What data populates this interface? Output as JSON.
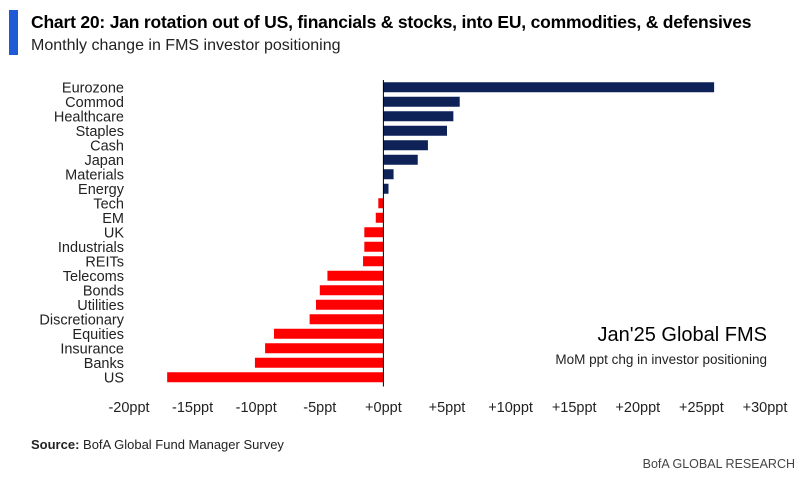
{
  "header": {
    "title": "Chart 20: Jan rotation out of US, financials & stocks, into EU, commodities, & defensives",
    "subtitle": "Monthly change in FMS investor positioning"
  },
  "annotation": {
    "title": "Jan'25 Global FMS",
    "subtitle": "MoM ppt chg in investor positioning"
  },
  "footer": {
    "source_label": "Source:",
    "source_text": "BofA Global Fund Manager Survey",
    "brand": "BofA GLOBAL RESEARCH"
  },
  "colors": {
    "positive": "#0f2258",
    "negative": "#ff0000",
    "accent": "#1f5bd6"
  },
  "chart_data": {
    "type": "bar",
    "orientation": "horizontal",
    "title": "Chart 20: Jan rotation out of US, financials & stocks, into EU, commodities, & defensives",
    "subtitle": "Monthly change in FMS investor positioning",
    "categories": [
      "Eurozone",
      "Commod",
      "Healthcare",
      "Staples",
      "Cash",
      "Japan",
      "Materials",
      "Energy",
      "Tech",
      "EM",
      "UK",
      "Industrials",
      "REITs",
      "Telecoms",
      "Bonds",
      "Utilities",
      "Discretionary",
      "Equities",
      "Insurance",
      "Banks",
      "US"
    ],
    "values": [
      26,
      6,
      5.5,
      5,
      3.5,
      2.7,
      0.8,
      0.4,
      -0.4,
      -0.6,
      -1.5,
      -1.5,
      -1.6,
      -4.4,
      -5,
      -5.3,
      -5.8,
      -8.6,
      -9.3,
      -10.1,
      -17
    ],
    "xlim": [
      -20,
      30
    ],
    "xticks": [
      "-20ppt",
      "-15ppt",
      "-10ppt",
      "-5ppt",
      "+0ppt",
      "+5ppt",
      "+10ppt",
      "+15ppt",
      "+20ppt",
      "+25ppt",
      "+30ppt"
    ],
    "xlabel": "",
    "ylabel": "",
    "grid": false
  }
}
